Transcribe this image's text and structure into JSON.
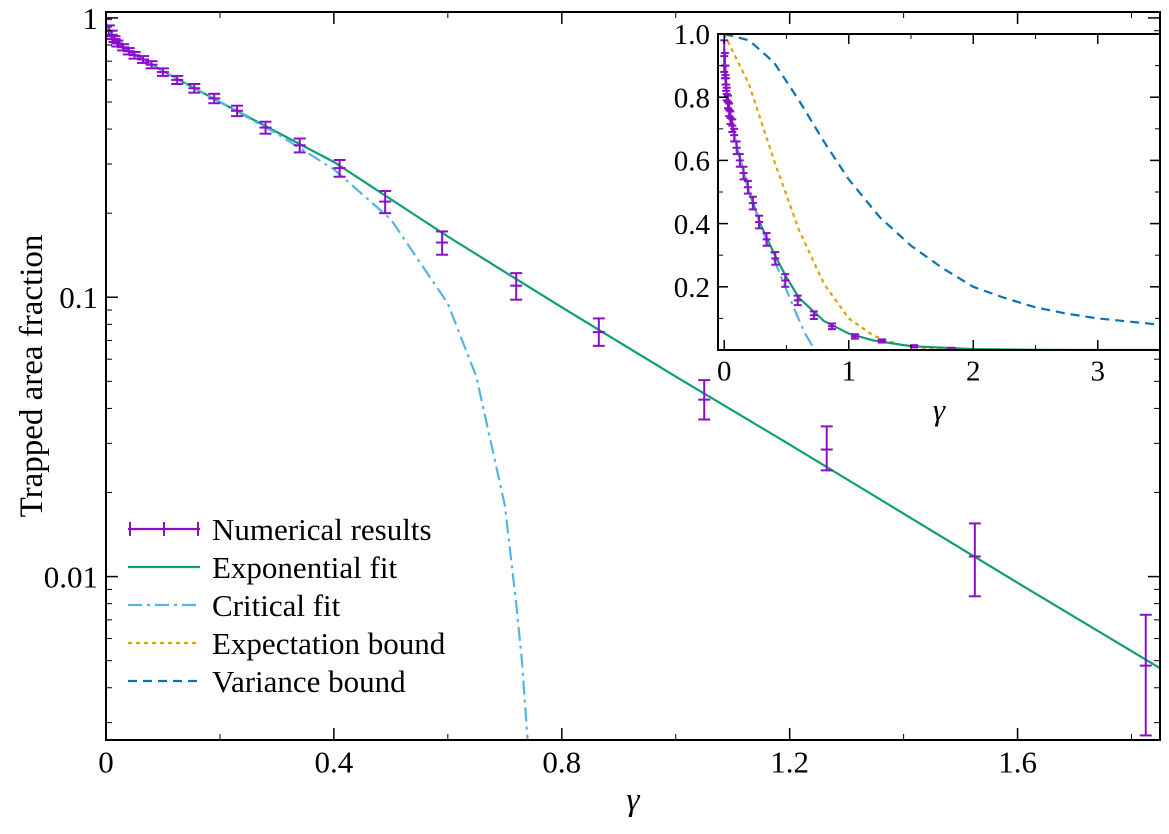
{
  "colors": {
    "numerical": "#8a0fc9",
    "exponential": "#0f9e73",
    "critical": "#55b4e6",
    "expectation": "#e69f00",
    "variance": "#0b72b2",
    "frame": "#000000"
  },
  "chart_data": [
    {
      "type": "line",
      "xlabel": "γ",
      "ylabel": "Trapped area fraction",
      "xlim": [
        0,
        1.85
      ],
      "ylim": [
        0.0026,
        1.05
      ],
      "yscale": "log",
      "grid": false,
      "legend_position": "bottom-left",
      "x_ticks": [
        0,
        0.4,
        0.8,
        1.2,
        1.6
      ],
      "x_tick_labels": [
        "0",
        "0.4",
        "0.8",
        "1.2",
        "1.6"
      ],
      "y_ticks": [
        0.01,
        0.1,
        1
      ],
      "y_tick_labels": [
        "0.01",
        "0.1",
        "1"
      ],
      "legend": [
        "Numerical results",
        "Exponential fit",
        "Critical fit",
        "Expectation bound",
        "Variance bound"
      ],
      "series": [
        {
          "name": "Numerical results",
          "style": "errorbar",
          "x": [
            0.0,
            0.005,
            0.01,
            0.015,
            0.02,
            0.03,
            0.04,
            0.05,
            0.065,
            0.08,
            0.1,
            0.125,
            0.155,
            0.19,
            0.23,
            0.28,
            0.34,
            0.41,
            0.49,
            0.59,
            0.72,
            0.865,
            1.05,
            1.265,
            1.525,
            1.825
          ],
          "y": [
            0.93,
            0.9,
            0.87,
            0.84,
            0.81,
            0.785,
            0.76,
            0.735,
            0.71,
            0.68,
            0.64,
            0.6,
            0.56,
            0.515,
            0.465,
            0.405,
            0.35,
            0.29,
            0.22,
            0.157,
            0.11,
            0.075,
            0.043,
            0.0285,
            0.0118,
            0.0048
          ],
          "err_low": [
            0.06,
            0.04,
            0.03,
            0.02,
            0.02,
            0.02,
            0.02,
            0.02,
            0.02,
            0.02,
            0.02,
            0.02,
            0.02,
            0.02,
            0.02,
            0.02,
            0.02,
            0.02,
            0.02,
            0.015,
            0.012,
            0.008,
            0.0065,
            0.0045,
            0.0033,
            0.0021
          ],
          "err_high": [
            0.06,
            0.04,
            0.03,
            0.02,
            0.02,
            0.02,
            0.02,
            0.02,
            0.02,
            0.02,
            0.02,
            0.02,
            0.02,
            0.02,
            0.02,
            0.02,
            0.02,
            0.02,
            0.02,
            0.015,
            0.012,
            0.009,
            0.0075,
            0.006,
            0.0037,
            0.0025
          ]
        },
        {
          "name": "Exponential fit",
          "style": "solid",
          "x": [
            0.0,
            0.02,
            0.05,
            0.1,
            0.2,
            0.3,
            0.4,
            0.6,
            0.8,
            1.0,
            1.2,
            1.4,
            1.6,
            1.85
          ],
          "y": [
            0.955,
            0.81,
            0.74,
            0.645,
            0.5,
            0.39,
            0.305,
            0.165,
            0.092,
            0.052,
            0.0297,
            0.0168,
            0.0095,
            0.0047
          ]
        },
        {
          "name": "Critical fit",
          "style": "dashdot",
          "x": [
            0.0,
            0.02,
            0.05,
            0.1,
            0.2,
            0.3,
            0.4,
            0.5,
            0.6,
            0.65,
            0.7,
            0.72,
            0.73,
            0.735,
            0.74
          ],
          "y": [
            0.95,
            0.81,
            0.74,
            0.645,
            0.5,
            0.385,
            0.287,
            0.19,
            0.095,
            0.052,
            0.018,
            0.008,
            0.005,
            0.0036,
            0.0026
          ]
        }
      ]
    },
    {
      "type": "line",
      "xlabel": "γ",
      "ylabel": "",
      "xlim": [
        -0.05,
        3.5
      ],
      "ylim": [
        0.0,
        1.0
      ],
      "grid": false,
      "legend_position": "none",
      "x_ticks": [
        0,
        1,
        2,
        3
      ],
      "x_tick_labels": [
        "0",
        "1",
        "2",
        "3"
      ],
      "y_ticks": [
        0.2,
        0.4,
        0.6,
        0.8,
        1.0
      ],
      "y_tick_labels": [
        "0.2",
        "0.4",
        "0.6",
        "0.8",
        "1.0"
      ],
      "series": [
        {
          "name": "Numerical results",
          "style": "errorbar",
          "x": [
            0.0,
            0.005,
            0.01,
            0.015,
            0.02,
            0.03,
            0.04,
            0.05,
            0.065,
            0.08,
            0.1,
            0.125,
            0.155,
            0.19,
            0.23,
            0.28,
            0.34,
            0.41,
            0.49,
            0.59,
            0.72,
            0.865,
            1.05,
            1.265,
            1.525,
            1.825
          ],
          "y": [
            0.93,
            0.9,
            0.87,
            0.84,
            0.81,
            0.785,
            0.76,
            0.735,
            0.71,
            0.68,
            0.64,
            0.6,
            0.56,
            0.515,
            0.465,
            0.405,
            0.35,
            0.29,
            0.22,
            0.157,
            0.11,
            0.075,
            0.043,
            0.0285,
            0.0118,
            0.0048
          ],
          "err": [
            0.05,
            0.04,
            0.03,
            0.02,
            0.02,
            0.02,
            0.02,
            0.02,
            0.02,
            0.02,
            0.02,
            0.02,
            0.02,
            0.02,
            0.02,
            0.02,
            0.02,
            0.02,
            0.02,
            0.015,
            0.012,
            0.009,
            0.007,
            0.005,
            0.0035,
            0.0023
          ]
        },
        {
          "name": "Exponential fit",
          "style": "solid",
          "x": [
            0.0,
            0.02,
            0.05,
            0.1,
            0.2,
            0.3,
            0.4,
            0.5,
            0.6,
            0.8,
            1.0,
            1.2,
            1.5,
            2.0,
            2.5,
            3.0,
            3.5
          ],
          "y": [
            0.955,
            0.81,
            0.74,
            0.645,
            0.5,
            0.39,
            0.305,
            0.23,
            0.165,
            0.092,
            0.052,
            0.03,
            0.012,
            0.003,
            0.0006,
            0.0001,
            0.0
          ],
          "clip": false
        },
        {
          "name": "Critical fit",
          "style": "dashdot",
          "x": [
            0.0,
            0.02,
            0.05,
            0.1,
            0.2,
            0.3,
            0.4,
            0.5,
            0.6,
            0.65,
            0.7,
            0.74
          ],
          "y": [
            0.95,
            0.81,
            0.74,
            0.645,
            0.5,
            0.385,
            0.287,
            0.19,
            0.095,
            0.052,
            0.018,
            0.0
          ]
        },
        {
          "name": "Expectation bound",
          "style": "dotted",
          "x": [
            0.0,
            0.2,
            0.4,
            0.6,
            0.8,
            1.0,
            1.2,
            1.4,
            1.6,
            1.8,
            2.0,
            2.5,
            3.0,
            3.5
          ],
          "y": [
            1.0,
            0.84,
            0.6,
            0.38,
            0.21,
            0.1,
            0.045,
            0.018,
            0.007,
            0.002,
            0.001,
            0.0,
            0.0,
            0.0
          ]
        },
        {
          "name": "Variance bound",
          "style": "dashed",
          "x": [
            0.0,
            0.2,
            0.4,
            0.6,
            0.8,
            1.0,
            1.25,
            1.5,
            1.75,
            2.0,
            2.25,
            2.5,
            2.75,
            3.0,
            3.25,
            3.5
          ],
          "y": [
            1.0,
            0.98,
            0.91,
            0.79,
            0.66,
            0.54,
            0.42,
            0.33,
            0.26,
            0.2,
            0.165,
            0.135,
            0.115,
            0.1,
            0.09,
            0.08
          ]
        }
      ]
    }
  ]
}
